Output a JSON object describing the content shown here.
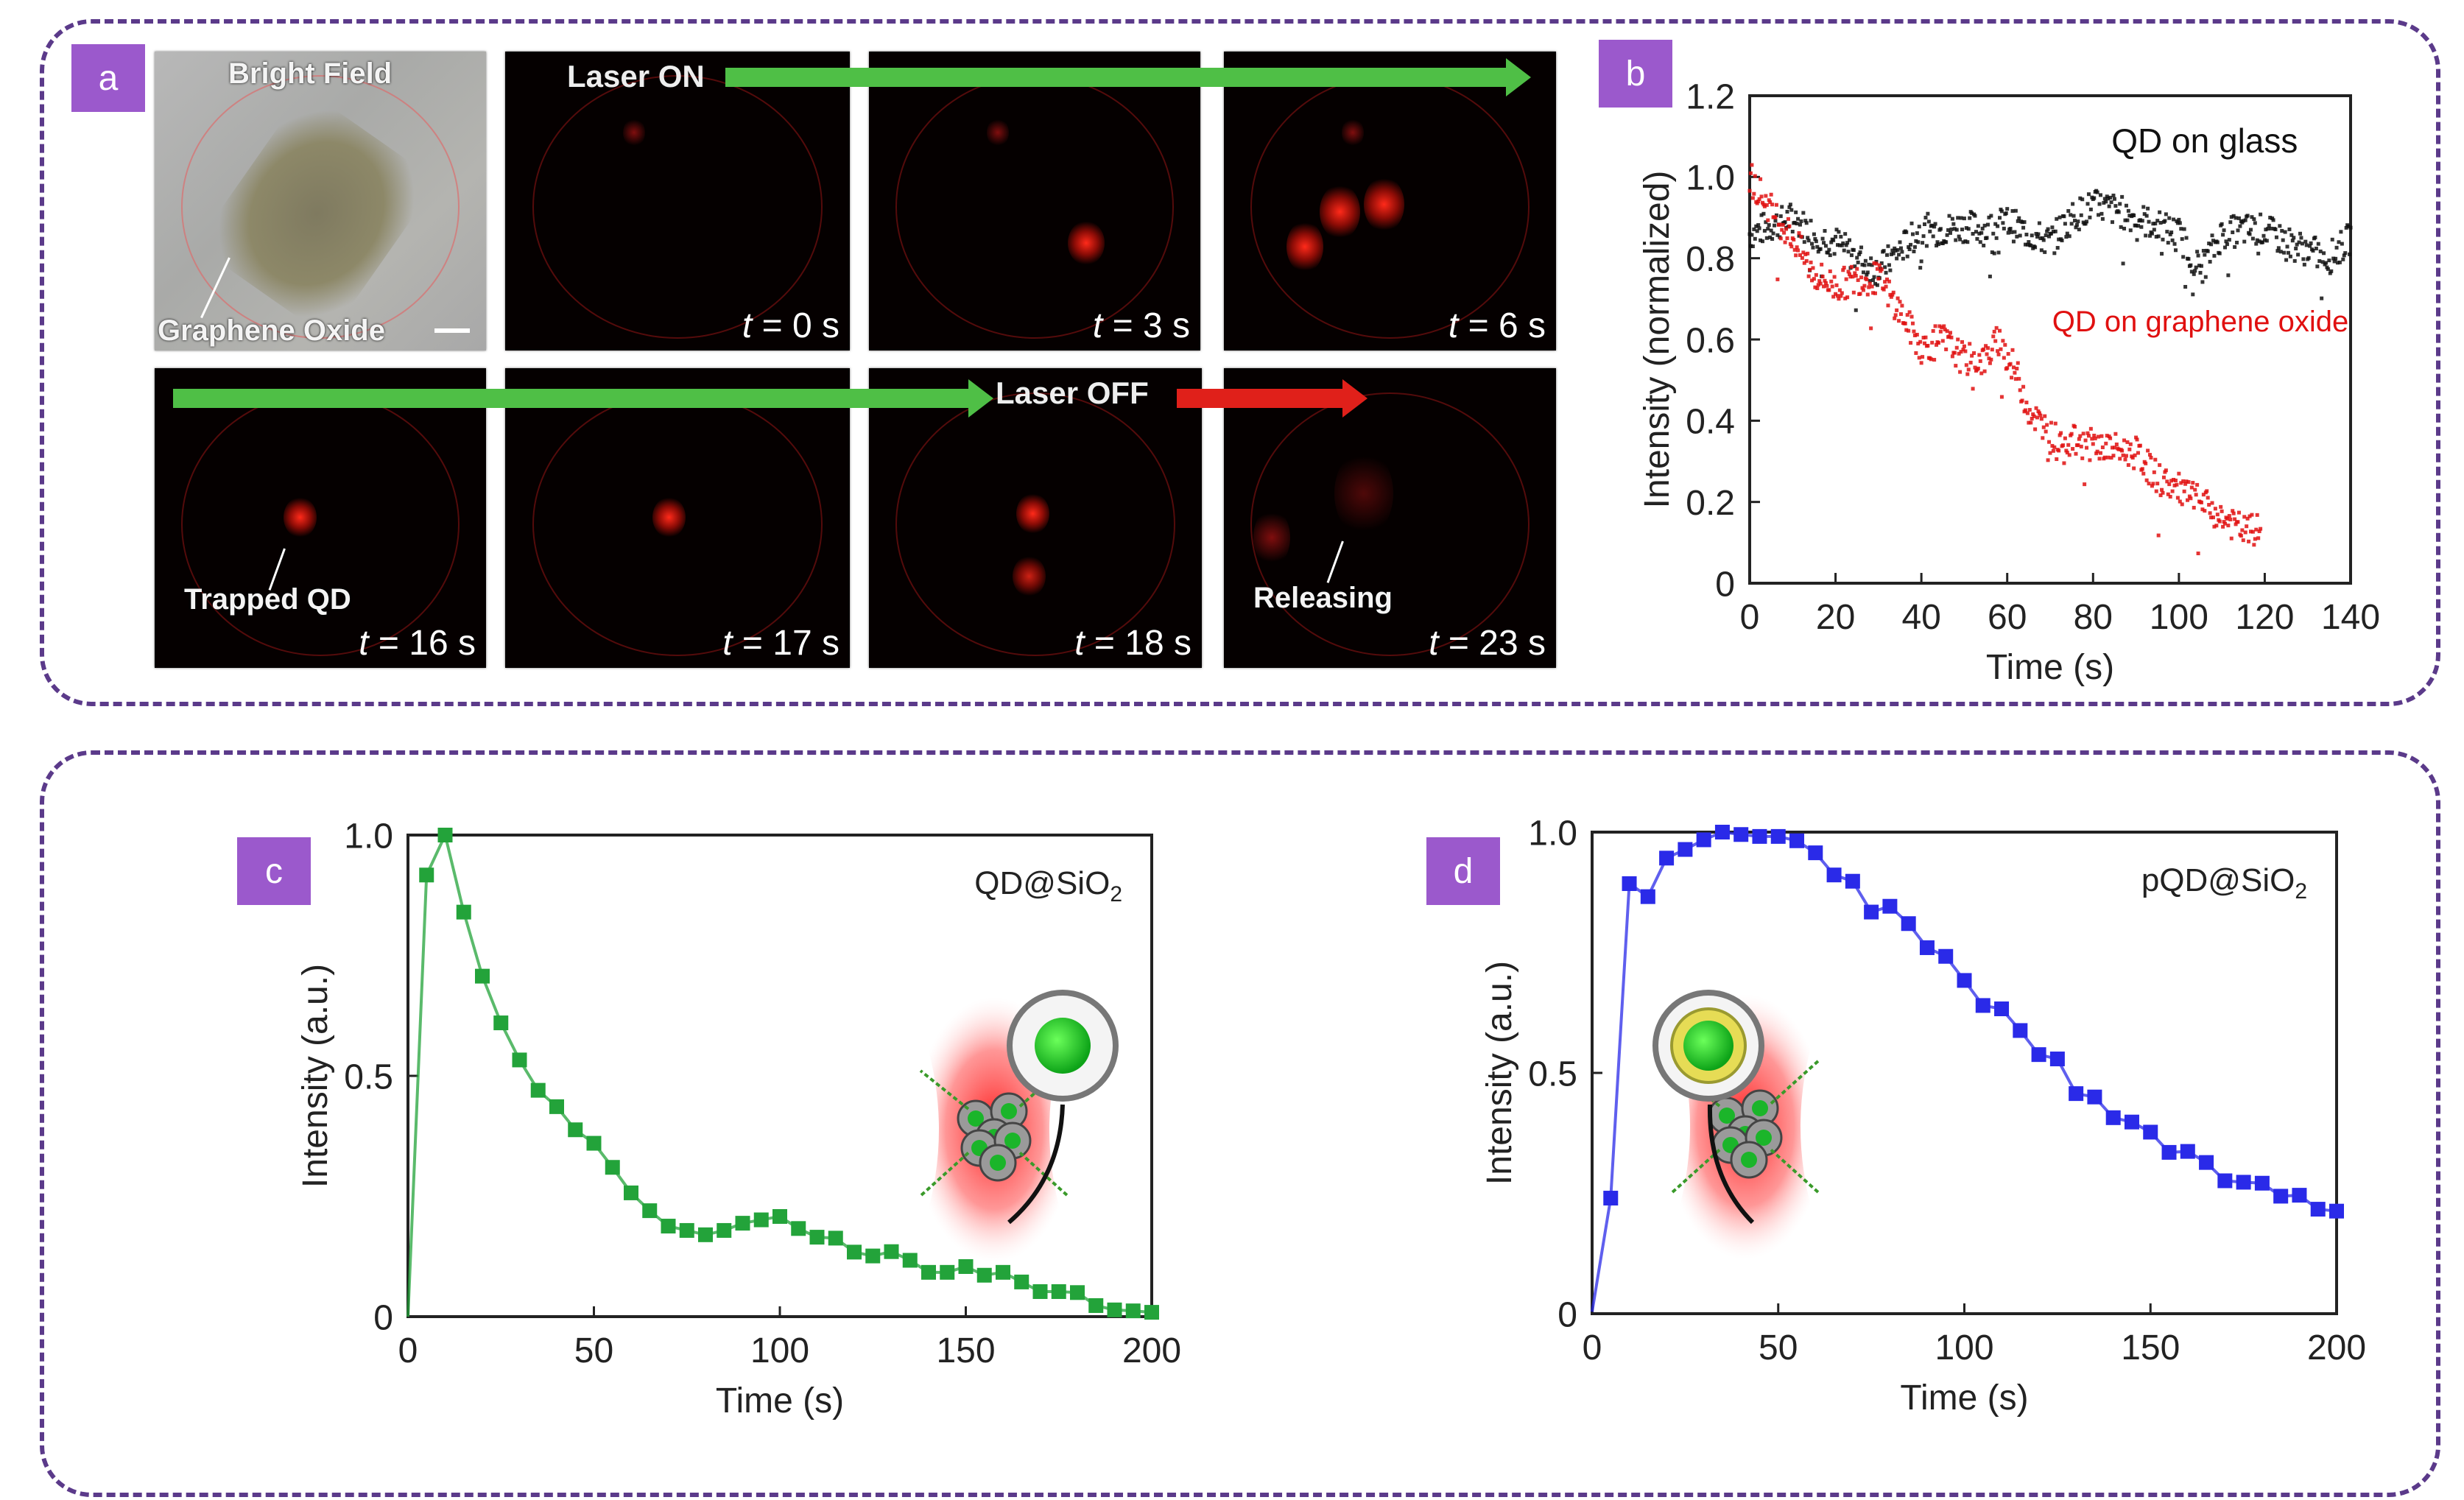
{
  "panels": {
    "a": {
      "label": "a",
      "bright_field_title": "Bright Field",
      "bright_field_caption": "Graphene Oxide",
      "laser_on": "Laser ON",
      "laser_off": "Laser OFF",
      "trapped_caption": "Trapped QD",
      "releasing_caption": "Releasing",
      "frames": [
        {
          "t": "t",
          "rest": " = 0 s"
        },
        {
          "t": "t",
          "rest": " = 3 s"
        },
        {
          "t": "t",
          "rest": " = 6 s"
        },
        {
          "t": "t",
          "rest": " = 16 s"
        },
        {
          "t": "t",
          "rest": " = 17 s"
        },
        {
          "t": "t",
          "rest": " = 18 s"
        },
        {
          "t": "t",
          "rest": " = 23 s"
        }
      ]
    },
    "b": {
      "label": "b"
    },
    "c": {
      "label": "c"
    },
    "d": {
      "label": "d"
    }
  },
  "colors": {
    "border_dash": "#5b3a8a",
    "label_bg": "#9b59cc",
    "glass": "#111111",
    "graphene": "#e01010",
    "qd_sio2": "#23a33a",
    "pqd_sio2": "#2a2ae8"
  },
  "chart_data": [
    {
      "id": "b",
      "type": "scatter",
      "title": "",
      "xlabel": "Time (s)",
      "ylabel": "Intensity (normalized)",
      "xlim": [
        0,
        140
      ],
      "ylim": [
        0,
        1.2
      ],
      "xticks": [
        "0",
        "20",
        "40",
        "60",
        "80",
        "100",
        "120",
        "140"
      ],
      "yticks": [
        "0",
        "0.2",
        "0.4",
        "0.6",
        "0.8",
        "1.0",
        "1.2"
      ],
      "annotations": [
        "QD on glass",
        "QD on graphene oxide"
      ],
      "series": [
        {
          "name": "QD on glass",
          "color": "#111111",
          "x": [
            0,
            5,
            10,
            15,
            20,
            25,
            30,
            35,
            40,
            45,
            50,
            55,
            60,
            65,
            70,
            75,
            80,
            85,
            90,
            95,
            100,
            105,
            110,
            115,
            120,
            125,
            130,
            135,
            140
          ],
          "y": [
            0.86,
            0.88,
            0.9,
            0.86,
            0.84,
            0.8,
            0.77,
            0.82,
            0.87,
            0.87,
            0.88,
            0.87,
            0.89,
            0.86,
            0.84,
            0.9,
            0.93,
            0.92,
            0.9,
            0.88,
            0.86,
            0.77,
            0.86,
            0.87,
            0.87,
            0.84,
            0.82,
            0.8,
            0.85
          ]
        },
        {
          "name": "QD on graphene oxide",
          "color": "#e01010",
          "x": [
            0,
            5,
            10,
            15,
            20,
            25,
            30,
            35,
            40,
            45,
            50,
            55,
            58,
            62,
            65,
            70,
            75,
            80,
            85,
            90,
            95,
            100,
            105,
            110,
            115,
            119
          ],
          "y": [
            1.0,
            0.92,
            0.85,
            0.76,
            0.73,
            0.75,
            0.75,
            0.67,
            0.58,
            0.6,
            0.55,
            0.55,
            0.6,
            0.52,
            0.43,
            0.36,
            0.35,
            0.34,
            0.33,
            0.32,
            0.26,
            0.23,
            0.2,
            0.16,
            0.13,
            0.13
          ]
        }
      ]
    },
    {
      "id": "c",
      "type": "line",
      "title": "QD@SiO2",
      "title_main": "QD@SiO",
      "title_sub": "2",
      "xlabel": "Time (s)",
      "ylabel": "Intensity (a.u.)",
      "xlim": [
        0,
        200
      ],
      "ylim": [
        0,
        1.0
      ],
      "xticks": [
        "0",
        "50",
        "100",
        "150",
        "200"
      ],
      "yticks": [
        "0",
        "0.5",
        "1.0"
      ],
      "series": [
        {
          "name": "QD@SiO2",
          "color": "#23a33a",
          "x": [
            0,
            5,
            10,
            15,
            20,
            25,
            30,
            35,
            40,
            45,
            50,
            55,
            60,
            65,
            70,
            75,
            80,
            85,
            90,
            95,
            100,
            105,
            110,
            115,
            120,
            125,
            130,
            135,
            140,
            145,
            150,
            155,
            160,
            165,
            170,
            175,
            180,
            185,
            190,
            195,
            200
          ],
          "y": [
            0.0,
            0.917,
            1.0,
            0.84,
            0.707,
            0.61,
            0.533,
            0.47,
            0.436,
            0.388,
            0.36,
            0.31,
            0.257,
            0.22,
            0.188,
            0.179,
            0.17,
            0.179,
            0.194,
            0.201,
            0.208,
            0.183,
            0.165,
            0.163,
            0.134,
            0.126,
            0.135,
            0.117,
            0.092,
            0.092,
            0.104,
            0.086,
            0.092,
            0.072,
            0.052,
            0.052,
            0.05,
            0.023,
            0.014,
            0.012,
            0.009
          ]
        }
      ]
    },
    {
      "id": "d",
      "type": "line",
      "title": "pQD@SiO2",
      "title_main": "pQD@SiO",
      "title_sub": "2",
      "xlabel": "Time (s)",
      "ylabel": "Intensity (a.u.)",
      "xlim": [
        0,
        200
      ],
      "ylim": [
        0,
        1.0
      ],
      "xticks": [
        "0",
        "50",
        "100",
        "150",
        "200"
      ],
      "yticks": [
        "0",
        "0.5",
        "1.0"
      ],
      "series": [
        {
          "name": "pQD@SiO2",
          "color": "#2a2ae8",
          "x": [
            0,
            5,
            10,
            15,
            20,
            25,
            30,
            35,
            40,
            45,
            50,
            55,
            60,
            65,
            70,
            75,
            80,
            85,
            90,
            95,
            100,
            105,
            110,
            115,
            120,
            125,
            130,
            135,
            140,
            145,
            150,
            155,
            160,
            165,
            170,
            175,
            180,
            185,
            190,
            195,
            200
          ],
          "y": [
            0.004,
            0.24,
            0.893,
            0.866,
            0.946,
            0.964,
            0.984,
            1.0,
            0.995,
            0.991,
            0.991,
            0.982,
            0.957,
            0.911,
            0.898,
            0.834,
            0.846,
            0.81,
            0.76,
            0.742,
            0.692,
            0.64,
            0.633,
            0.588,
            0.538,
            0.529,
            0.457,
            0.45,
            0.407,
            0.398,
            0.377,
            0.335,
            0.337,
            0.314,
            0.276,
            0.273,
            0.271,
            0.244,
            0.246,
            0.217,
            0.213
          ]
        }
      ]
    }
  ]
}
